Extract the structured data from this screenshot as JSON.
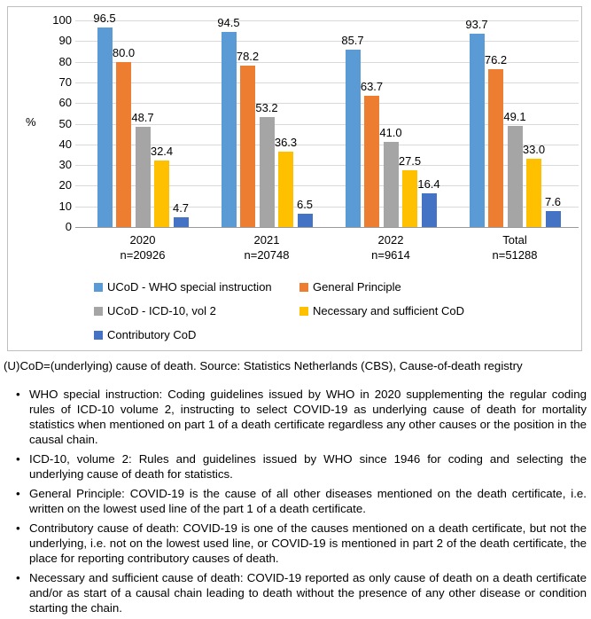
{
  "chart_data": {
    "type": "bar",
    "title": "",
    "xlabel": "",
    "ylabel": "%",
    "ylim": [
      0,
      100
    ],
    "ytick_step": 10,
    "grid": true,
    "legend_position": "bottom",
    "categories": [
      "2020",
      "2021",
      "2022",
      "Total"
    ],
    "category_sublabels": [
      "n=20926",
      "n=20748",
      "n=9614",
      "n=51288"
    ],
    "series": [
      {
        "name": "UCoD - WHO special instruction",
        "color": "#5B9BD5",
        "values": [
          96.5,
          94.5,
          85.7,
          93.7
        ]
      },
      {
        "name": "General Principle",
        "color": "#ED7D31",
        "values": [
          80.0,
          78.2,
          63.7,
          76.2
        ]
      },
      {
        "name": "UCoD - ICD-10, vol 2",
        "color": "#A5A5A5",
        "values": [
          48.7,
          53.2,
          41.0,
          49.1
        ]
      },
      {
        "name": "Necessary and sufficient CoD",
        "color": "#FFC000",
        "values": [
          32.4,
          36.3,
          27.5,
          33.0
        ]
      },
      {
        "name": "Contributory CoD",
        "color": "#4472C4",
        "values": [
          4.7,
          6.5,
          16.4,
          7.6
        ]
      }
    ]
  },
  "notes": {
    "source_line": "(U)CoD=(underlying) cause of death. Source: Statistics Netherlands (CBS), Cause-of-death registry",
    "bullets": [
      "WHO special instruction: Coding guidelines issued by WHO in 2020 supplementing the regular coding rules of ICD-10 volume 2, instructing to select COVID-19 as underlying cause of death for mortality statistics when mentioned on part 1 of a death certificate regardless any other causes or the position in the causal chain.",
      "ICD-10, volume 2: Rules and guidelines issued by WHO since 1946 for coding and selecting the underlying cause of death for statistics.",
      "General Principle: COVID-19 is the cause of all other diseases mentioned on the death certificate, i.e. written on the lowest used line of the part 1 of a death certificate.",
      "Contributory cause of death: COVID-19 is one of the causes mentioned on a death certificate, but not the underlying, i.e. not on the lowest used line, or COVID-19 is mentioned in part 2 of the death certificate, the place for reporting contributory causes of death.",
      "Necessary and sufficient cause of death: COVID-19 reported as only cause of death on a death certificate and/or as start of a causal chain leading to death without the presence of any other disease or condition starting the chain."
    ]
  }
}
